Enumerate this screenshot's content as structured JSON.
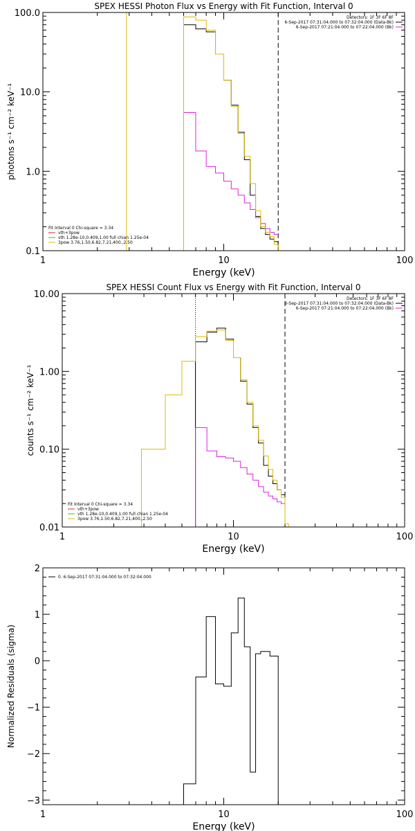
{
  "chart_data": [
    {
      "type": "line",
      "title": "SPEX HESSI Photon Flux vs Energy with Fit Function, Interval 0",
      "xlabel": "Energy (keV)",
      "ylabel": "photons s⁻¹ cm⁻² keV⁻¹",
      "xscale": "log",
      "yscale": "log",
      "xlim": [
        1,
        100
      ],
      "ylim": [
        0.1,
        100
      ],
      "xticks": [
        1,
        10,
        100
      ],
      "xtick_labels": [
        "1",
        "10",
        "100"
      ],
      "yticks": [
        0.1,
        1,
        10,
        100
      ],
      "ytick_labels": [
        "0.1",
        "1.0",
        "10.0",
        "100.0"
      ],
      "legend_top": [
        {
          "text": "Detectors: 1F 3F 6F 8F",
          "color": null
        },
        {
          "text": "6-Sep-2017 07:31:04.000 to 07:32:04.000 (Data-Bk)",
          "color": "#000000"
        },
        {
          "text": "6-Sep-2017 07:21:04.000 to 07:22:04.000 (Bk)",
          "color": "#dd22dd"
        }
      ],
      "legend_bottom": [
        {
          "text": "Fit Interval 0   Chi-square = 3.34",
          "color": null
        },
        {
          "text": "vth+3pow",
          "color": "#dd2222"
        },
        {
          "text": "vth 1.28e-10,0.409,1.00  full chian 1.25e-04",
          "color": "#22cc22"
        },
        {
          "text": "3pow 3.76,1.50,6.82,7.21,400.,2.50",
          "color": "#ddbb00"
        }
      ],
      "vlines": [
        {
          "x": 2.9,
          "style": "solid",
          "color": "#ddbb00"
        },
        {
          "x": 6.0,
          "style": "dotted",
          "color": "#000000"
        },
        {
          "x": 20.0,
          "style": "dashed",
          "color": "#000000"
        }
      ],
      "series": [
        {
          "name": "6-Sep-2017 07:31:04.000 to 07:32:04.000 (Data-Bk)",
          "color": "#000000",
          "edges": [
            6,
            7,
            8,
            9,
            10,
            11,
            12,
            13,
            14,
            15,
            16,
            17,
            18,
            19,
            20
          ],
          "values": [
            70,
            62,
            57,
            30,
            14,
            6.8,
            3.1,
            1.4,
            0.5,
            0.27,
            0.19,
            0.16,
            0.14,
            0.13
          ],
          "drop_left": true,
          "drop_right": true
        },
        {
          "name": "6-Sep-2017 07:21:04.000 to 07:22:04.000 (Bk)",
          "color": "#dd22dd",
          "edges": [
            6,
            7,
            8,
            9,
            10,
            11,
            12,
            13,
            14,
            15,
            16,
            17,
            18,
            19,
            20
          ],
          "values": [
            5.5,
            1.8,
            1.15,
            0.95,
            0.75,
            0.6,
            0.5,
            0.4,
            0.33,
            0.26,
            0.22,
            0.19,
            0.17,
            0.16
          ],
          "drop_left": true,
          "drop_right": false
        },
        {
          "name": "3pow 3.76,1.50,6.82,7.21,400.,2.50",
          "color": "#ddbb00",
          "edges": [
            6,
            7,
            8,
            9,
            10,
            11,
            12,
            13,
            14,
            15,
            16,
            17,
            18,
            19,
            20
          ],
          "values": [
            88,
            80,
            60,
            30,
            14,
            6.6,
            3.0,
            1.55,
            0.7,
            0.32,
            0.2,
            0.17,
            0.15,
            0.12
          ],
          "drop_left": true,
          "drop_right": true
        }
      ]
    },
    {
      "type": "line",
      "title": "SPEX HESSI Count Flux vs Energy with Fit Function, Interval 0",
      "xlabel": "Energy (keV)",
      "ylabel": "counts s⁻¹ cm⁻² keV⁻¹",
      "xscale": "log",
      "yscale": "log",
      "xlim": [
        1,
        100
      ],
      "ylim": [
        0.01,
        10
      ],
      "xticks": [
        1,
        10,
        100
      ],
      "xtick_labels": [
        "1",
        "10",
        "100"
      ],
      "yticks": [
        0.01,
        0.1,
        1,
        10
      ],
      "ytick_labels": [
        "0.01",
        "0.10",
        "1.00",
        "10.00"
      ],
      "legend_top": [
        {
          "text": "Detectors: 1F 3F 6F 8F",
          "color": null
        },
        {
          "text": "6-Sep-2017 07:31:04.000 to 07:32:04.000 (Data-Bk)",
          "color": "#000000"
        },
        {
          "text": "6-Sep-2017 07:21:04.000 to 07:22:04.000 (Bk)",
          "color": "#dd22dd"
        }
      ],
      "legend_bottom": [
        {
          "text": "Fit Interval 0   Chi-square = 3.34",
          "color": null
        },
        {
          "text": "vth+3pow",
          "color": "#dd2222"
        },
        {
          "text": "vth 1.28e-10,0.409,1.00  full chian 1.25e-04",
          "color": "#22cc22"
        },
        {
          "text": "3pow 3.76,1.50,6.82,7.21,400.,2.50",
          "color": "#ddbb00"
        }
      ],
      "vlines": [
        {
          "x": 6.0,
          "style": "dotted",
          "color": "#000000"
        },
        {
          "x": 20.0,
          "style": "dashed",
          "color": "#000000"
        }
      ],
      "series": [
        {
          "name": "6-Sep-2017 07:31:04.000 to 07:32:04.000 (Data-Bk)",
          "color": "#000000",
          "edges": [
            6,
            7,
            8,
            9,
            10,
            11,
            12,
            13,
            14,
            15,
            16,
            17,
            18,
            19,
            20
          ],
          "values": [
            2.4,
            3.2,
            3.6,
            2.6,
            1.5,
            0.75,
            0.38,
            0.19,
            0.12,
            0.062,
            0.045,
            0.036,
            0.03,
            0.026
          ],
          "drop_left": true,
          "drop_right": true
        },
        {
          "name": "6-Sep-2017 07:21:04.000 to 07:22:04.000 (Bk)",
          "color": "#dd22dd",
          "edges": [
            6,
            7,
            8,
            9,
            10,
            11,
            12,
            13,
            14,
            15,
            16,
            17,
            18,
            19,
            20
          ],
          "values": [
            0.19,
            0.095,
            0.08,
            0.077,
            0.07,
            0.058,
            0.048,
            0.04,
            0.033,
            0.028,
            0.025,
            0.023,
            0.021,
            0.02
          ],
          "drop_left": true,
          "drop_right": false
        },
        {
          "name": "3pow 3.76,1.50,6.82,7.21,400.,2.50",
          "color": "#ddbb00",
          "edges": [
            2.9,
            4,
            5,
            6,
            7,
            8,
            9,
            10,
            11,
            12,
            13,
            14,
            15,
            16,
            17,
            18,
            19,
            20,
            21
          ],
          "values": [
            0.1,
            0.5,
            1.35,
            2.8,
            3.3,
            3.4,
            2.5,
            1.5,
            0.78,
            0.4,
            0.2,
            0.13,
            0.082,
            0.055,
            0.04,
            0.03,
            0.024,
            0.011
          ],
          "drop_left": true,
          "drop_right": true
        }
      ]
    },
    {
      "type": "line",
      "title": "",
      "xlabel": "Energy (keV)",
      "ylabel": "Normalized Residuals (sigma)",
      "xscale": "log",
      "yscale": "linear",
      "xlim": [
        1,
        100
      ],
      "ylim": [
        -3.1,
        2
      ],
      "xticks": [
        1,
        10,
        100
      ],
      "xtick_labels": [
        "1",
        "10",
        "100"
      ],
      "yticks": [
        -3,
        -2,
        -1,
        0,
        1,
        2
      ],
      "ytick_labels": [
        "−3",
        "−2",
        "−1",
        "0",
        "1",
        "2"
      ],
      "legend_top": [
        {
          "text": "0. 6-Sep-2017 07:31:04.000 to 07:32:04.000",
          "color": "#000000"
        }
      ],
      "legend_bottom": [],
      "vlines": [],
      "series": [
        {
          "name": "0. 6-Sep-2017 07:31:04.000 to 07:32:04.000",
          "color": "#000000",
          "edges": [
            6,
            7,
            8,
            9,
            10,
            11,
            12,
            13,
            14,
            15,
            16,
            17,
            18,
            19,
            20
          ],
          "values": [
            -2.65,
            -0.35,
            0.95,
            -0.5,
            -0.55,
            0.6,
            1.35,
            0.3,
            -2.4,
            0.15,
            0.2,
            0.2,
            0.1,
            0.1
          ],
          "drop_left": true,
          "drop_right": true
        }
      ]
    }
  ]
}
